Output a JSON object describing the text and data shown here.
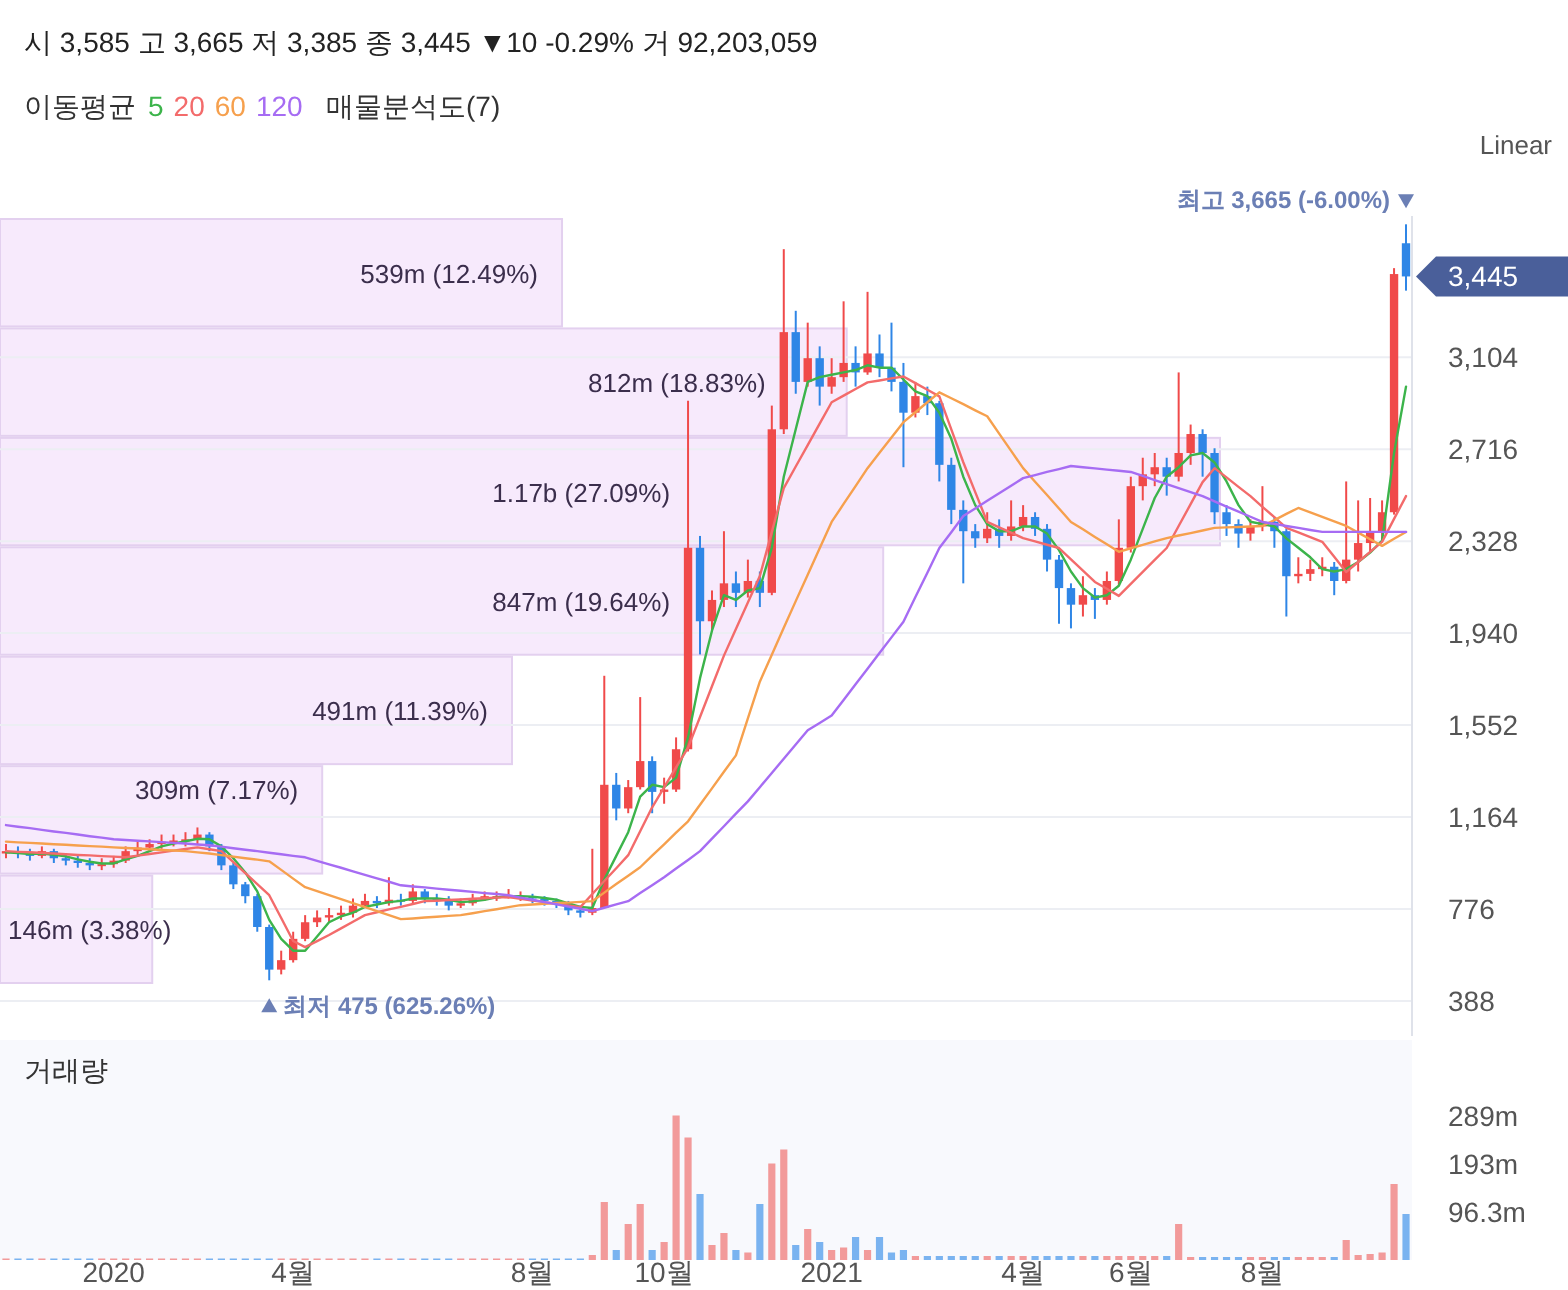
{
  "chart_data": [
    {
      "type": "candlestick",
      "title": "시 3,585 고 3,665 저 3,385 종 3,445 ▼10 -0.29% 거 92,203,059",
      "legend_title": "이동평균",
      "legend": "top left",
      "grid": "y",
      "tick_labels": "y",
      "ohlc": [
        [
          1010,
          1050,
          990,
          1020
        ],
        [
          1020,
          1040,
          990,
          1010
        ],
        [
          1010,
          1030,
          980,
          1000
        ],
        [
          1000,
          1040,
          990,
          1020
        ],
        [
          1020,
          1030,
          970,
          990
        ],
        [
          990,
          1010,
          960,
          980
        ],
        [
          980,
          1000,
          950,
          970
        ],
        [
          970,
          990,
          940,
          960
        ],
        [
          960,
          990,
          940,
          965
        ],
        [
          965,
          1000,
          950,
          980
        ],
        [
          980,
          1040,
          970,
          1020
        ],
        [
          1020,
          1060,
          1000,
          1035
        ],
        [
          1035,
          1070,
          1020,
          1050
        ],
        [
          1050,
          1090,
          1030,
          1060
        ],
        [
          1060,
          1090,
          1040,
          1065
        ],
        [
          1065,
          1100,
          1040,
          1070
        ],
        [
          1070,
          1120,
          1050,
          1090
        ],
        [
          1090,
          1100,
          1020,
          1040
        ],
        [
          1040,
          1050,
          940,
          960
        ],
        [
          960,
          970,
          860,
          880
        ],
        [
          880,
          890,
          800,
          830
        ],
        [
          830,
          840,
          680,
          700
        ],
        [
          700,
          710,
          475,
          520
        ],
        [
          520,
          600,
          500,
          560
        ],
        [
          560,
          680,
          550,
          650
        ],
        [
          650,
          750,
          640,
          720
        ],
        [
          720,
          770,
          700,
          740
        ],
        [
          740,
          780,
          720,
          750
        ],
        [
          750,
          790,
          730,
          760
        ],
        [
          760,
          820,
          740,
          790
        ],
        [
          790,
          840,
          780,
          810
        ],
        [
          810,
          830,
          780,
          800
        ],
        [
          800,
          910,
          790,
          815
        ],
        [
          815,
          840,
          790,
          810
        ],
        [
          810,
          880,
          800,
          850
        ],
        [
          850,
          860,
          800,
          820
        ],
        [
          820,
          840,
          790,
          810
        ],
        [
          810,
          830,
          770,
          790
        ],
        [
          790,
          820,
          780,
          800
        ],
        [
          800,
          840,
          790,
          820
        ],
        [
          820,
          850,
          810,
          830
        ],
        [
          830,
          850,
          810,
          830
        ],
        [
          830,
          860,
          820,
          830
        ],
        [
          830,
          850,
          810,
          830
        ],
        [
          830,
          840,
          800,
          820
        ],
        [
          820,
          830,
          790,
          810
        ],
        [
          810,
          820,
          780,
          800
        ],
        [
          800,
          810,
          750,
          770
        ],
        [
          770,
          790,
          740,
          760
        ],
        [
          760,
          1030,
          750,
          780
        ],
        [
          780,
          1760,
          780,
          1300
        ],
        [
          1300,
          1350,
          1150,
          1200
        ],
        [
          1200,
          1320,
          1180,
          1290
        ],
        [
          1290,
          1670,
          1280,
          1400
        ],
        [
          1400,
          1420,
          1180,
          1270
        ],
        [
          1270,
          1330,
          1220,
          1280
        ],
        [
          1280,
          1500,
          1270,
          1450
        ],
        [
          1450,
          2920,
          1440,
          2300
        ],
        [
          2300,
          2350,
          1850,
          1990
        ],
        [
          1990,
          2120,
          1950,
          2080
        ],
        [
          2080,
          2370,
          2050,
          2150
        ],
        [
          2150,
          2200,
          2050,
          2110
        ],
        [
          2110,
          2250,
          2090,
          2160
        ],
        [
          2160,
          2200,
          2050,
          2110
        ],
        [
          2110,
          2900,
          2100,
          2800
        ],
        [
          2800,
          3560,
          2780,
          3210
        ],
        [
          3210,
          3300,
          2950,
          3000
        ],
        [
          3000,
          3250,
          2980,
          3100
        ],
        [
          3100,
          3150,
          2900,
          2980
        ],
        [
          2980,
          3100,
          2950,
          3020
        ],
        [
          3020,
          3340,
          3000,
          3080
        ],
        [
          3080,
          3150,
          2980,
          3040
        ],
        [
          3040,
          3380,
          3030,
          3120
        ],
        [
          3120,
          3200,
          3020,
          3060
        ],
        [
          3060,
          3250,
          2960,
          3000
        ],
        [
          3000,
          3080,
          2640,
          2870
        ],
        [
          2870,
          3000,
          2850,
          2940
        ],
        [
          2940,
          2980,
          2860,
          2910
        ],
        [
          2910,
          2920,
          2580,
          2650
        ],
        [
          2650,
          2680,
          2400,
          2460
        ],
        [
          2460,
          2500,
          2150,
          2370
        ],
        [
          2370,
          2400,
          2300,
          2340
        ],
        [
          2340,
          2450,
          2320,
          2380
        ],
        [
          2380,
          2420,
          2300,
          2350
        ],
        [
          2350,
          2500,
          2330,
          2390
        ],
        [
          2390,
          2480,
          2370,
          2430
        ],
        [
          2430,
          2450,
          2350,
          2380
        ],
        [
          2380,
          2400,
          2200,
          2250
        ],
        [
          2250,
          2270,
          1980,
          2130
        ],
        [
          2130,
          2150,
          1960,
          2060
        ],
        [
          2060,
          2180,
          2010,
          2100
        ],
        [
          2100,
          2130,
          2000,
          2080
        ],
        [
          2080,
          2200,
          2060,
          2160
        ],
        [
          2160,
          2420,
          2140,
          2300
        ],
        [
          2300,
          2600,
          2280,
          2560
        ],
        [
          2560,
          2680,
          2500,
          2610
        ],
        [
          2610,
          2700,
          2560,
          2640
        ],
        [
          2640,
          2680,
          2520,
          2600
        ],
        [
          2600,
          3040,
          2580,
          2700
        ],
        [
          2700,
          2820,
          2650,
          2780
        ],
        [
          2780,
          2800,
          2600,
          2700
        ],
        [
          2700,
          2720,
          2400,
          2450
        ],
        [
          2450,
          2480,
          2350,
          2400
        ],
        [
          2400,
          2420,
          2300,
          2360
        ],
        [
          2360,
          2420,
          2330,
          2390
        ],
        [
          2390,
          2560,
          2370,
          2410
        ],
        [
          2410,
          2430,
          2300,
          2370
        ],
        [
          2370,
          2380,
          2010,
          2180
        ],
        [
          2180,
          2260,
          2150,
          2190
        ],
        [
          2190,
          2250,
          2160,
          2210
        ],
        [
          2210,
          2260,
          2180,
          2220
        ],
        [
          2220,
          2240,
          2100,
          2160
        ],
        [
          2160,
          2580,
          2150,
          2250
        ],
        [
          2250,
          2500,
          2200,
          2320
        ],
        [
          2320,
          2510,
          2280,
          2370
        ],
        [
          2370,
          2500,
          2330,
          2450
        ],
        [
          2450,
          3480,
          2440,
          3455
        ],
        [
          3585,
          3665,
          3385,
          3445
        ]
      ],
      "series": [
        {
          "name": "5",
          "type": "line",
          "color": "#3cb44b",
          "values": [
            1015,
            1012,
            1008,
            1010,
            1005,
            998,
            985,
            975,
            968,
            968,
            985,
            1000,
            1020,
            1040,
            1052,
            1062,
            1072,
            1070,
            1040,
            990,
            930,
            850,
            730,
            650,
            600,
            600,
            660,
            720,
            745,
            760,
            785,
            795,
            805,
            810,
            820,
            820,
            820,
            815,
            805,
            808,
            815,
            825,
            830,
            830,
            828,
            822,
            815,
            800,
            785,
            780,
            900,
            1000,
            1100,
            1250,
            1300,
            1290,
            1330,
            1500,
            1750,
            1950,
            2100,
            2080,
            2120,
            2130,
            2300,
            2600,
            2800,
            3000,
            3020,
            3030,
            3040,
            3050,
            3070,
            3060,
            3060,
            3010,
            2960,
            2940,
            2870,
            2760,
            2600,
            2480,
            2400,
            2370,
            2370,
            2390,
            2390,
            2360,
            2290,
            2200,
            2130,
            2090,
            2100,
            2140,
            2250,
            2380,
            2510,
            2600,
            2640,
            2690,
            2700,
            2660,
            2580,
            2480,
            2410,
            2400,
            2390,
            2340,
            2300,
            2260,
            2210,
            2200,
            2210,
            2240,
            2280,
            2330,
            2700,
            2980
          ]
        },
        {
          "name": "20",
          "type": "line",
          "color": "#f36b6b",
          "values": [
            1020,
            1017,
            1015,
            1012,
            1010,
            1007,
            1004,
            1002,
            999,
            997,
            994,
            1001,
            1008,
            1015,
            1022,
            1029,
            1036,
            1028,
            1020,
            974,
            927,
            881,
            834,
            738,
            641,
            615,
            640,
            666,
            694,
            722,
            750,
            762,
            774,
            785,
            797,
            809,
            811,
            814,
            816,
            819,
            821,
            824,
            826,
            819,
            812,
            805,
            798,
            791,
            784,
            839,
            894,
            948,
            1003,
            1104,
            1205,
            1289,
            1373,
            1457,
            1586,
            1716,
            1845,
            1957,
            2069,
            2181,
            2367,
            2552,
            2643,
            2733,
            2824,
            2914,
            2942,
            2970,
            2998,
            3006,
            3015,
            3023,
            2995,
            2967,
            2939,
            2800,
            2661,
            2535,
            2409,
            2386,
            2364,
            2341,
            2327,
            2313,
            2299,
            2251,
            2204,
            2156,
            2127,
            2097,
            2148,
            2198,
            2249,
            2299,
            2392,
            2484,
            2577,
            2636,
            2597,
            2557,
            2518,
            2473,
            2429,
            2384,
            2365,
            2345,
            2325,
            2262,
            2198,
            2240,
            2283,
            2325,
            2422,
            2518
          ]
        },
        {
          "name": "60",
          "type": "line",
          "color": "#f6a04d",
          "values": [
            1060,
            1057,
            1055,
            1052,
            1049,
            1047,
            1044,
            1041,
            1039,
            1036,
            1033,
            1031,
            1028,
            1025,
            1023,
            1020,
            1015,
            1010,
            1003,
            997,
            990,
            984,
            977,
            941,
            904,
            868,
            851,
            834,
            818,
            801,
            784,
            767,
            750,
            733,
            736,
            740,
            743,
            747,
            750,
            758,
            767,
            775,
            784,
            792,
            795,
            798,
            801,
            803,
            806,
            809,
            845,
            881,
            916,
            952,
            1001,
            1049,
            1098,
            1146,
            1216,
            1285,
            1355,
            1424,
            1580,
            1735,
            1849,
            1963,
            2075,
            2186,
            2298,
            2409,
            2485,
            2560,
            2636,
            2701,
            2765,
            2830,
            2872,
            2914,
            2956,
            2931,
            2906,
            2880,
            2855,
            2782,
            2709,
            2636,
            2579,
            2523,
            2466,
            2409,
            2378,
            2346,
            2315,
            2283,
            2298,
            2312,
            2327,
            2341,
            2352,
            2362,
            2373,
            2384,
            2386,
            2388,
            2390,
            2392,
            2417,
            2443,
            2468,
            2449,
            2430,
            2411,
            2392,
            2364,
            2336,
            2308,
            2338,
            2367
          ]
        },
        {
          "name": "120",
          "type": "line",
          "color": "#a66cf3",
          "values": [
            1130,
            1123,
            1117,
            1110,
            1103,
            1097,
            1090,
            1083,
            1077,
            1070,
            1067,
            1064,
            1061,
            1058,
            1055,
            1052,
            1048,
            1045,
            1039,
            1032,
            1026,
            1020,
            1013,
            1007,
            1000,
            994,
            979,
            964,
            950,
            935,
            920,
            905,
            891,
            876,
            871,
            867,
            862,
            857,
            853,
            848,
            843,
            839,
            834,
            824,
            815,
            805,
            796,
            786,
            777,
            767,
            781,
            795,
            809,
            843,
            876,
            910,
            947,
            983,
            1020,
            1073,
            1125,
            1178,
            1230,
            1290,
            1350,
            1410,
            1470,
            1530,
            1561,
            1592,
            1658,
            1724,
            1790,
            1856,
            1922,
            1988,
            2092,
            2195,
            2299,
            2366,
            2434,
            2466,
            2498,
            2530,
            2562,
            2594,
            2607,
            2620,
            2632,
            2645,
            2640,
            2635,
            2630,
            2625,
            2620,
            2603,
            2586,
            2569,
            2552,
            2535,
            2518,
            2496,
            2474,
            2453,
            2431,
            2409,
            2401,
            2392,
            2384,
            2375,
            2367,
            2367,
            2367,
            2367,
            2367,
            2367,
            2367,
            2367
          ]
        }
      ],
      "ylim": [
        240,
        3700
      ],
      "yticks": [
        388,
        776,
        {
          "value": 1164,
          "label": "1,164"
        },
        {
          "value": 1552,
          "label": "1,552"
        },
        {
          "value": 1940,
          "label": "1,940"
        },
        {
          "value": 2328,
          "label": "2,328"
        },
        {
          "value": 2716,
          "label": "2,716"
        },
        {
          "value": 3104,
          "label": "3,104"
        }
      ],
      "annotations": [
        "최고 3,665 (-6.00%)",
        "최저 475 (625.26%)",
        "3,445",
        "Linear"
      ]
    },
    {
      "type": "bar",
      "orientation": "horizontal",
      "title": "매물분석도(7)",
      "color": "#f7eafc",
      "categories": [
        null,
        null,
        null,
        null,
        null,
        null,
        null
      ],
      "values": [
        539000000,
        812000000,
        1170000000,
        847000000,
        491000000,
        309000000,
        146000000
      ],
      "value_labels": [
        "539m (12.49%)",
        "812m (18.83%)",
        "1.17b (27.09%)",
        "847m (19.64%)",
        "491m (11.39%)",
        "309m (7.17%)",
        "146m (3.38%)"
      ]
    },
    {
      "type": "bar",
      "title": "거래량",
      "categories": [
        null,
        null,
        null,
        null,
        null,
        null,
        null,
        null,
        null,
        "2020",
        null,
        null,
        null,
        null,
        null,
        null,
        null,
        null,
        null,
        null,
        null,
        null,
        null,
        null,
        "4월",
        null,
        null,
        null,
        null,
        null,
        null,
        null,
        null,
        null,
        null,
        null,
        null,
        null,
        null,
        null,
        null,
        null,
        null,
        null,
        "8월",
        null,
        null,
        null,
        null,
        null,
        null,
        null,
        null,
        null,
        null,
        "10월",
        null,
        null,
        null,
        null,
        null,
        null,
        null,
        null,
        null,
        null,
        null,
        null,
        null,
        "2021",
        null,
        null,
        null,
        null,
        null,
        null,
        null,
        null,
        null,
        null,
        null,
        null,
        null,
        null,
        null,
        "4월",
        null,
        null,
        null,
        null,
        null,
        null,
        null,
        null,
        "6월",
        null,
        null,
        null,
        null,
        null,
        null,
        null,
        null,
        null,
        null,
        "8월",
        null,
        null,
        null,
        null,
        null,
        null,
        null,
        null,
        null,
        null,
        null,
        null
      ],
      "values": [
        3,
        3,
        3,
        3,
        3,
        3,
        3,
        3,
        3,
        3,
        3,
        3,
        3,
        3,
        3,
        3,
        3,
        3,
        3,
        3,
        3,
        3,
        3,
        3,
        3,
        3,
        3,
        3,
        3,
        3,
        3,
        3,
        3,
        3,
        3,
        3,
        3,
        3,
        3,
        3,
        3,
        3,
        3,
        3,
        3,
        3,
        3,
        3,
        3,
        10,
        116,
        20,
        72,
        112,
        20,
        36,
        289,
        245,
        132,
        30,
        54,
        20,
        15,
        112,
        193,
        221,
        30,
        62,
        36,
        20,
        25,
        46,
        20,
        46,
        15,
        20,
        8,
        8,
        8,
        8,
        8,
        8,
        8,
        8,
        8,
        8,
        8,
        8,
        8,
        8,
        8,
        8,
        8,
        8,
        8,
        8,
        8,
        8,
        72,
        6,
        6,
        6,
        6,
        6,
        6,
        6,
        6,
        6,
        6,
        6,
        6,
        6,
        40,
        10,
        12,
        15,
        152,
        92
      ],
      "ylim": [
        0,
        440
      ],
      "yticks": [
        {
          "value": 96.3,
          "label": "96.3m"
        },
        {
          "value": 193,
          "label": "193m"
        },
        {
          "value": 289,
          "label": "289m"
        }
      ]
    }
  ]
}
